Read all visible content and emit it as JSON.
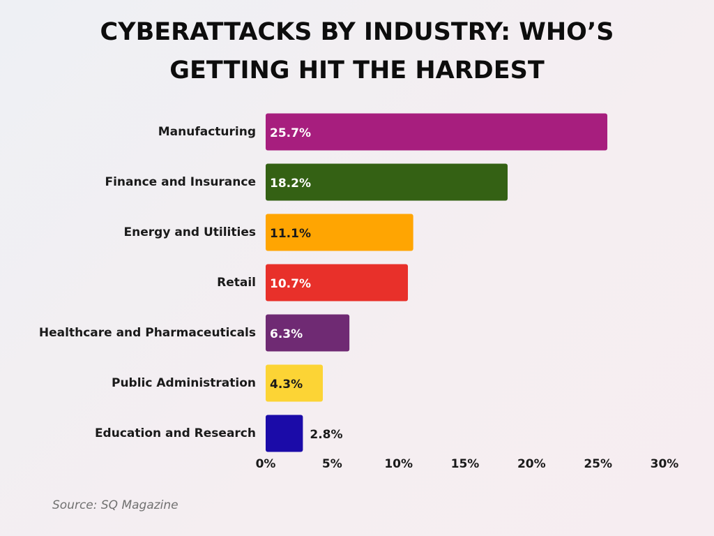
{
  "chart_data": {
    "type": "bar",
    "orientation": "horizontal",
    "title": [
      "CYBERATTACKS BY INDUSTRY: WHO’S",
      "GETTING HIT THE HARDEST"
    ],
    "categories": [
      "Manufacturing",
      "Finance and Insurance",
      "Energy and Utilities",
      "Retail",
      "Healthcare and Pharmaceuticals",
      "Public Administration",
      "Education and Research"
    ],
    "values": [
      25.7,
      18.2,
      11.1,
      10.7,
      6.3,
      4.3,
      2.8
    ],
    "value_labels": [
      "25.7%",
      "18.2%",
      "11.1%",
      "10.7%",
      "6.3%",
      "4.3%",
      "2.8%"
    ],
    "colors": [
      "#a71e7e",
      "#346114",
      "#ffa502",
      "#e8302a",
      "#6f2a73",
      "#fcd435",
      "#1b0ba8"
    ],
    "xlim": [
      0,
      30
    ],
    "xticks": [
      {
        "value": 0,
        "label": "0%"
      },
      {
        "value": 5,
        "label": "5%"
      },
      {
        "value": 10,
        "label": "10%"
      },
      {
        "value": 15,
        "label": "15%"
      },
      {
        "value": 20,
        "label": "20%"
      },
      {
        "value": 25,
        "label": "25%"
      },
      {
        "value": 30,
        "label": "30%"
      }
    ],
    "source": "Source: SQ Magazine"
  }
}
